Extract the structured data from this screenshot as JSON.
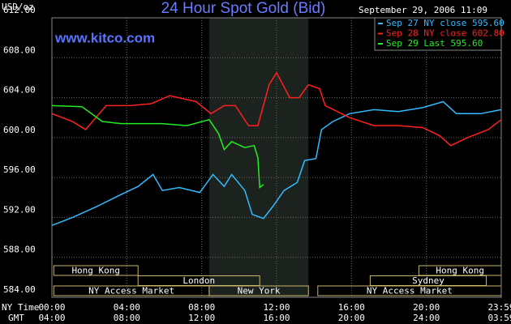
{
  "chart_data": {
    "type": "line",
    "title": "24 Hour Spot Gold (Bid)",
    "timestamp": "September 29, 2006 11:09",
    "y_label": "USD/oz",
    "watermark": "www.kitco.com",
    "x_label": "NY Time",
    "x2_label": "GMT",
    "xlim": [
      0,
      24
    ],
    "ylim": [
      584,
      612
    ],
    "xticks": [
      {
        "value": 0,
        "label": "00:00"
      },
      {
        "value": 4,
        "label": "04:00"
      },
      {
        "value": 8,
        "label": "08:00"
      },
      {
        "value": 12,
        "label": "12:00"
      },
      {
        "value": 16,
        "label": "16:00"
      },
      {
        "value": 20,
        "label": "20:00"
      },
      {
        "value": 24,
        "label": "23:59"
      }
    ],
    "x2ticks": [
      "04:00",
      "08:00",
      "12:00",
      "16:00",
      "20:00",
      "24:00",
      "03:59"
    ],
    "yticks": [
      {
        "value": 584,
        "label": "584.00"
      },
      {
        "value": 588,
        "label": "588.00"
      },
      {
        "value": 592,
        "label": "592.00"
      },
      {
        "value": 596,
        "label": "596.00"
      },
      {
        "value": 600,
        "label": "600.00"
      },
      {
        "value": 604,
        "label": "604.00"
      },
      {
        "value": 608,
        "label": "608.00"
      },
      {
        "value": 612,
        "label": "612.00"
      }
    ],
    "grid": true,
    "shade": [
      8.4,
      13.7
    ],
    "sessions": [
      [
        {
          "name": "Hong Kong",
          "start": 0.1,
          "end": 4.6
        },
        {
          "name": "Hong Kong",
          "start": 19.6,
          "end": 24
        }
      ],
      [
        {
          "name": "London",
          "start": 4.6,
          "end": 11.1
        },
        {
          "name": "Sydney",
          "start": 17,
          "end": 23.2
        }
      ],
      [
        {
          "name": "NY Access Market",
          "start": 0.1,
          "end": 8.4
        },
        {
          "name": "New York",
          "start": 8.4,
          "end": 13.7
        },
        {
          "name": "NY Access Market",
          "start": 14.2,
          "end": 24
        }
      ]
    ],
    "series": [
      {
        "name": "Sep 27 NY close 595.60",
        "color": "#33bbff",
        "x": [
          0,
          1.1,
          2.4,
          3.7,
          4.6,
          5.4,
          5.9,
          6.8,
          7.9,
          8.6,
          9.2,
          9.6,
          10.3,
          10.7,
          11.3,
          11.8,
          12.4,
          13.1,
          13.5,
          14.1,
          14.4,
          15.0,
          15.9,
          17.2,
          18.5,
          19.8,
          20.9,
          21.6,
          22.9,
          24
        ],
        "values": [
          591.2,
          592.0,
          593.1,
          594.3,
          595.1,
          596.3,
          594.7,
          595.0,
          594.5,
          596.3,
          595.1,
          596.3,
          594.7,
          592.3,
          591.9,
          593.1,
          594.7,
          595.5,
          597.7,
          597.9,
          600.8,
          601.6,
          602.4,
          602.8,
          602.6,
          603.0,
          603.6,
          602.4,
          602.4,
          602.8
        ]
      },
      {
        "name": "Sep 28 NY close 602.80",
        "color": "#ff2020",
        "x": [
          0,
          1.1,
          1.8,
          2.9,
          4.2,
          5.3,
          6.3,
          7.7,
          8.5,
          9.2,
          9.8,
          10.5,
          11.0,
          11.6,
          12.0,
          12.7,
          13.2,
          13.7,
          14.3,
          14.6,
          15.9,
          17.2,
          18.5,
          19.8,
          20.7,
          21.3,
          22.2,
          23.3,
          24
        ],
        "values": [
          602.4,
          601.6,
          600.8,
          603.2,
          603.2,
          603.4,
          604.2,
          603.6,
          602.4,
          603.2,
          603.2,
          601.2,
          601.2,
          605.3,
          606.5,
          604.0,
          604.0,
          605.3,
          604.9,
          603.2,
          602.0,
          601.2,
          601.2,
          601.0,
          600.2,
          599.2,
          600.0,
          600.8,
          601.8
        ]
      },
      {
        "name": "Sep 29 Last 595.60",
        "color": "#22ee22",
        "x": [
          0,
          1.6,
          2.7,
          3.7,
          4.8,
          5.9,
          7.2,
          8.4,
          8.9,
          9.2,
          9.6,
          10.3,
          10.8,
          11.0,
          11.1,
          11.3
        ],
        "values": [
          603.2,
          603.1,
          601.6,
          601.4,
          601.4,
          601.4,
          601.2,
          601.8,
          600.4,
          598.8,
          599.6,
          599.0,
          599.2,
          598.0,
          595.0,
          595.3
        ]
      }
    ]
  }
}
